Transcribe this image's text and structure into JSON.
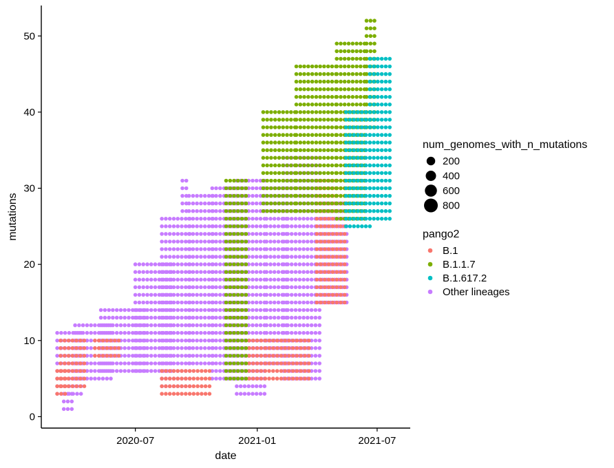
{
  "chart_data": {
    "type": "scatter",
    "xlabel": "date",
    "ylabel": "mutations",
    "x_ticks": [
      "2020-07",
      "2021-01",
      "2021-07"
    ],
    "y_ticks": [
      0,
      10,
      20,
      30,
      40,
      50
    ],
    "xlim": [
      "2020-02-10",
      "2021-08-20"
    ],
    "ylim": [
      -1.5,
      54
    ],
    "grid": false,
    "legend_position": "right",
    "size_legend": {
      "title": "num_genomes_with_n_mutations",
      "entries": [
        {
          "label": "200",
          "value": 200
        },
        {
          "label": "400",
          "value": 400
        },
        {
          "label": "600",
          "value": 600
        },
        {
          "label": "800",
          "value": 800
        }
      ]
    },
    "color_legend": {
      "title": "pango2",
      "entries": [
        {
          "label": "B.1",
          "color": "#F8766D"
        },
        {
          "label": "B.1.1.7",
          "color": "#7CAE00"
        },
        {
          "label": "B.1.617.2",
          "color": "#00BFC4"
        },
        {
          "label": "Other lineages",
          "color": "#C77CFF"
        }
      ]
    },
    "series": [
      {
        "name": "Other lineages",
        "color": "#C77CFF",
        "points": [
          {
            "date": "2020-03-12",
            "start": "2020-03-05",
            "end": "2020-04-10",
            "y_min": 3,
            "y_max": 11
          },
          {
            "date": "2020-03-25",
            "start": "2020-03-15",
            "end": "2020-03-30",
            "y_min": 1,
            "y_max": 3
          },
          {
            "date": "2020-04-15",
            "start": "2020-04-01",
            "end": "2020-05-25",
            "y_min": 5,
            "y_max": 12
          },
          {
            "date": "2020-06-01",
            "start": "2020-05-10",
            "end": "2020-07-15",
            "y_min": 6,
            "y_max": 14
          },
          {
            "date": "2020-07-20",
            "start": "2020-07-01",
            "end": "2020-08-25",
            "y_min": 6,
            "y_max": 20
          },
          {
            "date": "2020-09-01",
            "start": "2020-08-10",
            "end": "2020-09-25",
            "y_min": 4,
            "y_max": 26
          },
          {
            "date": "2020-09-15",
            "start": "2020-09-10",
            "end": "2020-09-20",
            "y_min": 27,
            "y_max": 31
          },
          {
            "date": "2020-10-10",
            "start": "2020-09-20",
            "end": "2020-10-31",
            "y_min": 7,
            "y_max": 29
          },
          {
            "date": "2020-11-15",
            "start": "2020-10-25",
            "end": "2020-12-05",
            "y_min": 5,
            "y_max": 30
          },
          {
            "date": "2020-12-20",
            "start": "2020-12-01",
            "end": "2021-01-15",
            "y_min": 3,
            "y_max": 31
          },
          {
            "date": "2021-01-28",
            "start": "2021-01-15",
            "end": "2021-02-15",
            "y_min": 7,
            "y_max": 30
          },
          {
            "date": "2021-03-01",
            "start": "2021-02-10",
            "end": "2021-04-10",
            "y_min": 5,
            "y_max": 34
          },
          {
            "date": "2021-04-25",
            "start": "2021-04-10",
            "end": "2021-05-20",
            "y_min": 15,
            "y_max": 28
          }
        ]
      },
      {
        "name": "B.1",
        "color": "#F8766D",
        "points": [
          {
            "date": "2020-03-08",
            "start": "2020-03-05",
            "end": "2020-03-22",
            "y_min": 3,
            "y_max": 6
          },
          {
            "date": "2020-03-15",
            "start": "2020-03-10",
            "end": "2020-04-15",
            "y_min": 4,
            "y_max": 10
          },
          {
            "date": "2020-05-10",
            "start": "2020-05-01",
            "end": "2020-06-10",
            "y_min": 8,
            "y_max": 10
          },
          {
            "date": "2020-08-15",
            "start": "2020-08-10",
            "end": "2020-10-25",
            "y_min": 3,
            "y_max": 6
          },
          {
            "date": "2021-01-10",
            "start": "2020-12-20",
            "end": "2021-03-20",
            "y_min": 5,
            "y_max": 10
          },
          {
            "date": "2021-05-10",
            "start": "2021-04-01",
            "end": "2021-05-15",
            "y_min": 15,
            "y_max": 31
          }
        ]
      },
      {
        "name": "B.1.1.7",
        "color": "#7CAE00",
        "points": [
          {
            "date": "2020-12-10",
            "start": "2020-11-15",
            "end": "2020-12-20",
            "y_min": 5,
            "y_max": 31
          },
          {
            "date": "2021-02-10",
            "start": "2021-01-10",
            "end": "2021-03-01",
            "y_min": 27,
            "y_max": 40
          },
          {
            "date": "2021-04-05",
            "start": "2021-03-01",
            "end": "2021-05-01",
            "y_min": 27,
            "y_max": 46
          },
          {
            "date": "2021-05-20",
            "start": "2021-05-01",
            "end": "2021-06-15",
            "y_min": 26,
            "y_max": 49
          },
          {
            "date": "2021-06-25",
            "start": "2021-06-15",
            "end": "2021-07-01",
            "y_min": 38,
            "y_max": 52
          }
        ]
      },
      {
        "name": "B.1.617.2",
        "color": "#00BFC4",
        "points": [
          {
            "date": "2021-06-05",
            "start": "2021-05-15",
            "end": "2021-06-20",
            "y_min": 25,
            "y_max": 40
          },
          {
            "date": "2021-07-05",
            "start": "2021-06-20",
            "end": "2021-07-25",
            "y_min": 26,
            "y_max": 47
          }
        ]
      }
    ]
  }
}
